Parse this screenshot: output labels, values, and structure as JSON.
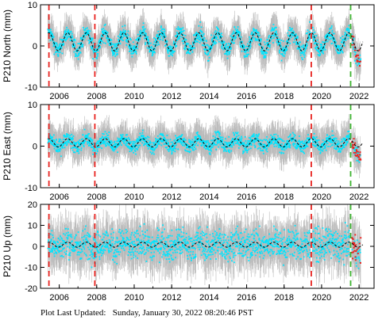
{
  "footer": {
    "label": "Plot Last Updated:",
    "timestamp": "Sunday, January 30, 2022 08:20:46 PST"
  },
  "colors": {
    "error_bars": "#aaaaaa",
    "data_points": "#00e5ff",
    "model_line": "#000000",
    "event_line_red": "#e8231f",
    "event_line_green": "#3cb32f",
    "recent_points": "#e8231f"
  },
  "chart_data": [
    {
      "type": "scatter",
      "ylabel": "P210 North (mm)",
      "xlim": [
        2005.0,
        2022.8
      ],
      "ylim": [
        -10,
        10
      ],
      "yticks": [
        -10,
        0,
        10
      ],
      "xticks": [
        2006,
        2008,
        2010,
        2012,
        2014,
        2016,
        2018,
        2020,
        2022
      ],
      "xtick_labels": [
        "2006",
        "2008",
        "2010",
        "2012",
        "2014",
        "2016",
        "2018",
        "2020",
        "2022"
      ],
      "series": [
        {
          "kind": "seasonal-model",
          "amplitude": 2.2,
          "offset": 1.0,
          "period_years": 1.0,
          "x_range": [
            2005.4,
            2022.2
          ]
        },
        {
          "kind": "daily-positions",
          "scatter": 1.4,
          "error_bar": 3.0,
          "x_range": [
            2005.4,
            2022.1
          ]
        }
      ],
      "event_lines": [
        {
          "x": 2005.45,
          "style": "dashed",
          "color": "red"
        },
        {
          "x": 2007.9,
          "style": "dashed",
          "color": "red"
        },
        {
          "x": 2019.45,
          "style": "dashed",
          "color": "red"
        },
        {
          "x": 2021.55,
          "style": "dashed",
          "color": "green"
        }
      ]
    },
    {
      "type": "scatter",
      "ylabel": "P210 East (mm)",
      "xlim": [
        2005.0,
        2022.8
      ],
      "ylim": [
        -10,
        10
      ],
      "yticks": [
        -10,
        0,
        10
      ],
      "xticks": [
        2006,
        2008,
        2010,
        2012,
        2014,
        2016,
        2018,
        2020,
        2022
      ],
      "xtick_labels": [
        "2006",
        "2008",
        "2010",
        "2012",
        "2014",
        "2016",
        "2018",
        "2020",
        "2022"
      ],
      "series": [
        {
          "kind": "seasonal-model",
          "amplitude": 1.0,
          "offset": 0.8,
          "period_years": 1.0,
          "x_range": [
            2005.4,
            2022.2
          ]
        },
        {
          "kind": "daily-positions",
          "scatter": 1.2,
          "error_bar": 3.0,
          "x_range": [
            2005.4,
            2022.1
          ]
        }
      ],
      "event_lines": [
        {
          "x": 2005.45,
          "style": "dashed",
          "color": "red"
        },
        {
          "x": 2007.9,
          "style": "dashed",
          "color": "red"
        },
        {
          "x": 2019.45,
          "style": "dashed",
          "color": "red"
        },
        {
          "x": 2021.55,
          "style": "dashed",
          "color": "green"
        }
      ]
    },
    {
      "type": "scatter",
      "ylabel": "P210 Up (mm)",
      "xlim": [
        2005.0,
        2022.8
      ],
      "ylim": [
        -20,
        20
      ],
      "yticks": [
        -20,
        -10,
        0,
        10,
        20
      ],
      "xticks": [
        2006,
        2008,
        2010,
        2012,
        2014,
        2016,
        2018,
        2020,
        2022
      ],
      "xtick_labels": [
        "2006",
        "2008",
        "2010",
        "2012",
        "2014",
        "2016",
        "2018",
        "2020",
        "2022"
      ],
      "series": [
        {
          "kind": "seasonal-model",
          "amplitude": 1.2,
          "offset": 0.8,
          "period_years": 1.0,
          "x_range": [
            2005.4,
            2022.2
          ]
        },
        {
          "kind": "daily-positions",
          "scatter": 5.0,
          "error_bar": 8.0,
          "x_range": [
            2005.4,
            2022.1
          ]
        }
      ],
      "event_lines": [
        {
          "x": 2005.45,
          "style": "dashed",
          "color": "red"
        },
        {
          "x": 2007.9,
          "style": "dashed",
          "color": "red"
        },
        {
          "x": 2019.45,
          "style": "dashed",
          "color": "red"
        },
        {
          "x": 2021.55,
          "style": "dashed",
          "color": "green"
        }
      ]
    }
  ]
}
